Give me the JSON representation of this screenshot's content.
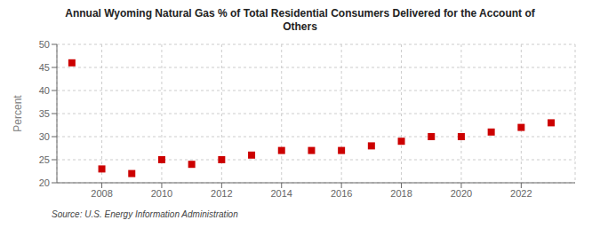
{
  "chart_data": {
    "type": "scatter",
    "title": "Annual Wyoming Natural Gas % of Total Residential Consumers Delivered for the Account of\nOthers",
    "y_label": "Percent",
    "annotations": [
      "Source: U.S. Energy Information Administration"
    ],
    "x": [
      2007,
      2008,
      2009,
      2010,
      2011,
      2012,
      2013,
      2014,
      2015,
      2016,
      2017,
      2018,
      2019,
      2020,
      2021,
      2022,
      2023
    ],
    "values": [
      46.0,
      23.0,
      22.0,
      25.0,
      24.0,
      25.0,
      26.0,
      27.0,
      27.0,
      27.0,
      28.0,
      29.0,
      30.0,
      30.0,
      31.0,
      32.0,
      33.0
    ],
    "color": "#cc0000",
    "marker": "square",
    "xlim": [
      2006.5,
      2023.8
    ],
    "xticks": [
      2008,
      2010,
      2012,
      2014,
      2016,
      2018,
      2020,
      2022
    ],
    "ylim": [
      20,
      50
    ],
    "yticks": [
      20,
      25,
      30,
      35,
      40,
      45,
      50
    ],
    "grid": true
  }
}
